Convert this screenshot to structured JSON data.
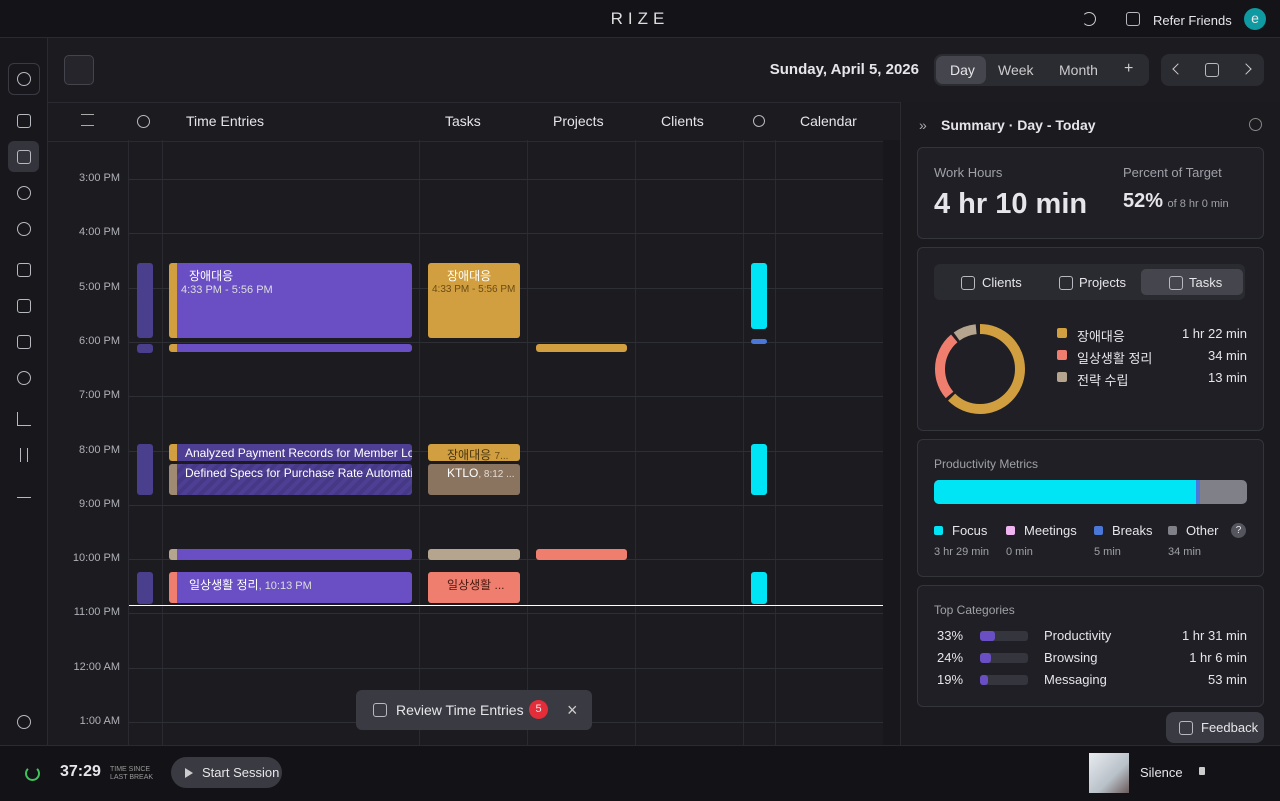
{
  "app": {
    "logo": "RIZE",
    "refer": "Refer Friends",
    "avatar": "e"
  },
  "toolbar": {
    "date": "Sunday, April 5, 2026",
    "views": [
      "Day",
      "Week",
      "Month"
    ],
    "add": "+"
  },
  "columns": [
    "Time Entries",
    "Tasks",
    "Projects",
    "Clients",
    "Calendar"
  ],
  "times": [
    "3:00 PM",
    "4:00 PM",
    "5:00 PM",
    "6:00 PM",
    "7:00 PM",
    "8:00 PM",
    "9:00 PM",
    "10:00 PM",
    "11:00 PM",
    "12:00 AM",
    "1:00 AM"
  ],
  "entries": {
    "first_title": "장애대응",
    "first_time": "4:33 PM - 5:56 PM",
    "analyzed": "Analyzed Payment Records for Member Lo",
    "defined": "Defined Specs for Purchase Rate Automati",
    "daily_title": "일상생활 정리",
    "daily_time": ", 10:13 PM"
  },
  "tasks": {
    "first_title": "장애대응",
    "first_time": "4:33 PM - 5:56 PM",
    "second_title": "장애대응",
    "second_time": "7...",
    "ktlo_title": "KTLO",
    "ktlo_time": ", 8:12 ...",
    "daily_title": "일상생활 ..."
  },
  "summary": {
    "title": "Summary · Day - Today",
    "work_label": "Work Hours",
    "work_value": "4 hr 10 min",
    "target_label": "Percent of Target",
    "target_value": "52%",
    "target_of": "of 8 hr 0 min",
    "tabs": [
      "Clients",
      "Projects",
      "Tasks"
    ],
    "legend": [
      {
        "name": "장애대응",
        "time": "1 hr 22 min"
      },
      {
        "name": "일상생활 정리",
        "time": "34 min"
      },
      {
        "name": "전략 수립",
        "time": "13 min"
      }
    ],
    "metrics_title": "Productivity Metrics",
    "metrics": [
      {
        "name": "Focus",
        "time": "3 hr 29 min"
      },
      {
        "name": "Meetings",
        "time": "0 min"
      },
      {
        "name": "Breaks",
        "time": "5 min"
      },
      {
        "name": "Other",
        "time": "34 min"
      }
    ],
    "help": "?",
    "categories_title": "Top Categories",
    "categories": [
      {
        "pct": "33%",
        "name": "Productivity",
        "time": "1 hr 31 min"
      },
      {
        "pct": "24%",
        "name": "Browsing",
        "time": "1 hr 6 min"
      },
      {
        "pct": "19%",
        "name": "Messaging",
        "time": "53 min"
      }
    ]
  },
  "review": {
    "label": "Review Time Entries",
    "count": "5"
  },
  "feedback": "Feedback",
  "footer": {
    "timer": "37:29",
    "since": "TIME SINCE",
    "last": "LAST BREAK",
    "start": "Start Session",
    "music": "Silence"
  }
}
